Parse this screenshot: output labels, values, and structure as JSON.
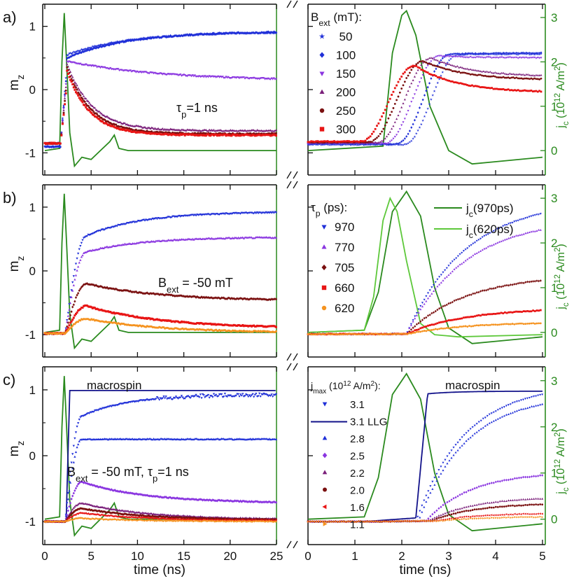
{
  "colors": {
    "axis": "#111111",
    "current": "#2a8a1e",
    "current_light": "#5dc83a",
    "blue": "#1f2fd8",
    "violet": "#8a35e0",
    "purple": "#7a1f7a",
    "darkred": "#7a1010",
    "red": "#e81515",
    "orange": "#f59320",
    "macrospin": "#12128a"
  },
  "chart_data": [
    {
      "panel": "a)",
      "type": "line",
      "ylabel": "m_z",
      "y2label": "j_c (10^12 A/m^2)",
      "ylim": [
        -1.35,
        1.35
      ],
      "y2lim": [
        -0.55,
        3.3
      ],
      "left": {
        "xlim": [
          0,
          25
        ],
        "xticks": [
          0,
          5,
          10,
          15,
          20,
          25
        ]
      },
      "right": {
        "xlim": [
          0,
          5
        ],
        "xticks": [
          0,
          1,
          2,
          3,
          4,
          5
        ]
      },
      "legend_title": "B_ext (mT):",
      "annotation": "τp=1 ns",
      "current": {
        "name": "j_c",
        "x": [
          0,
          1.6,
          1.8,
          2.0,
          2.1,
          2.3,
          2.6,
          3.0,
          3.5,
          4.0,
          5.0
        ],
        "y": [
          0,
          0.1,
          2.2,
          3.05,
          3.15,
          2.6,
          1.0,
          0.0,
          -0.3,
          -0.25,
          -0.15
        ]
      },
      "series": [
        {
          "name": "50",
          "color": "blue",
          "marker": "star",
          "end": 0.91,
          "t0": 2.9,
          "tau": 0.35,
          "peak": 0.55,
          "tpeak": 3.4
        },
        {
          "name": "100",
          "color": "blue",
          "marker": "diamond",
          "end": 0.92,
          "t0": 2.75,
          "tau": 0.3,
          "peak": 0.56,
          "tpeak": 3.3
        },
        {
          "name": "150",
          "color": "violet",
          "marker": "tri-down",
          "end": 0.14,
          "t0": 2.5,
          "tau": 0.25,
          "peak": 0.52,
          "tpeak": 3.0
        },
        {
          "name": "200",
          "color": "purple",
          "marker": "tri-up",
          "end": -0.65,
          "t0": 2.35,
          "tau": 0.22,
          "peak": 0.45,
          "tpeak": 2.7
        },
        {
          "name": "250",
          "color": "darkred",
          "marker": "circle",
          "end": -0.7,
          "t0": 2.2,
          "tau": 0.2,
          "peak": 0.38,
          "tpeak": 2.5
        },
        {
          "name": "300",
          "color": "red",
          "marker": "square",
          "end": -0.72,
          "t0": 2.05,
          "tau": 0.18,
          "peak": 0.3,
          "tpeak": 2.4
        }
      ]
    },
    {
      "panel": "b)",
      "type": "line",
      "ylabel": "m_z",
      "y2label": "j_c (10^12 A/m^2)",
      "ylim": [
        -1.35,
        1.35
      ],
      "y2lim": [
        -0.55,
        3.3
      ],
      "left": {
        "xlim": [
          0,
          25
        ],
        "xticks": [
          0,
          5,
          10,
          15,
          20,
          25
        ]
      },
      "right": {
        "xlim": [
          0,
          5
        ],
        "xticks": [
          0,
          1,
          2,
          3,
          4,
          5
        ]
      },
      "legend_title": "τp (ps):",
      "annotation": "Bext = -50 mT",
      "currents": [
        {
          "name": "jc(970ps)",
          "color": "current",
          "x": [
            0,
            1.2,
            1.5,
            1.8,
            2.1,
            2.4,
            2.7,
            3.0,
            3.5,
            4.0,
            5.0
          ],
          "y": [
            0,
            0.05,
            0.9,
            2.7,
            3.15,
            2.6,
            1.0,
            0.1,
            -0.25,
            -0.2,
            -0.1
          ]
        },
        {
          "name": "jc(620ps)",
          "color": "current_light",
          "x": [
            0,
            1.2,
            1.4,
            1.6,
            1.75,
            1.9,
            2.1,
            2.4,
            2.7,
            3.2,
            5.0
          ],
          "y": [
            0,
            0.05,
            0.8,
            2.5,
            3.0,
            2.7,
            1.6,
            0.2,
            -0.05,
            -0.1,
            -0.05
          ]
        }
      ],
      "series": [
        {
          "name": "970",
          "color": "blue",
          "marker": "tri-down",
          "end": 0.93
        },
        {
          "name": "770",
          "color": "violet",
          "marker": "tri-up",
          "end": 0.53
        },
        {
          "name": "705",
          "color": "darkred",
          "marker": "diamond",
          "end": -0.47
        },
        {
          "name": "660",
          "color": "red",
          "marker": "square",
          "end": -0.9
        },
        {
          "name": "620",
          "color": "orange",
          "marker": "circle",
          "end": -0.97
        }
      ]
    },
    {
      "panel": "c)",
      "type": "line",
      "ylabel": "m_z",
      "y2label": "j_c (10^12 A/m^2)",
      "ylim": [
        -1.35,
        1.35
      ],
      "y2lim": [
        -0.55,
        3.3
      ],
      "left": {
        "xlim": [
          0,
          25
        ],
        "xticks": [
          0,
          5,
          10,
          15,
          20,
          25
        ],
        "xlabel": "time (ns)"
      },
      "right": {
        "xlim": [
          0,
          5
        ],
        "xticks": [
          0,
          1,
          2,
          3,
          4,
          5
        ],
        "xlabel": "time (ns)"
      },
      "legend_title": "jmax (10^12 A/m^2):",
      "annotation": "Bext = -50 mT, τp=1 ns",
      "macrospin_label": "macrospin",
      "series": [
        {
          "name": "3.1",
          "color": "blue",
          "marker": "tri-down",
          "end": 0.93
        },
        {
          "name": "3.1 LLG",
          "color": "macrospin",
          "marker": "line",
          "end": 1.0
        },
        {
          "name": "2.8",
          "color": "blue",
          "marker": "tri-up",
          "end": 0.25
        },
        {
          "name": "2.5",
          "color": "violet",
          "marker": "diamond",
          "end": -0.72
        },
        {
          "name": "2.2",
          "color": "purple",
          "marker": "tri-up",
          "end": -0.97
        },
        {
          "name": "2.0",
          "color": "darkred",
          "marker": "circle",
          "end": -0.98
        },
        {
          "name": "1.6",
          "color": "red",
          "marker": "tri-left",
          "end": -0.99
        },
        {
          "name": "1.1",
          "color": "orange",
          "marker": "tri-right",
          "end": -1.0
        }
      ]
    }
  ],
  "labels": {
    "a": "a)",
    "b": "b)",
    "c": "c)",
    "mz": "m",
    "mz_sub": "z",
    "jc": "j",
    "jc_sub": "c",
    "jc_units": " (10",
    "jc_exp": "12",
    "jc_units2": " A/m",
    "jc_exp2": "2",
    "jc_close": ")",
    "xlabel": "time (ns)",
    "a_legend_title_B": "B",
    "a_legend_title_sub": "ext",
    "a_legend_title_rest": " (mT):",
    "a_legend": [
      "50",
      "100",
      "150",
      "200",
      "250",
      "300"
    ],
    "a_annot_tau": "τ",
    "a_annot_sub": "p",
    "a_annot_rest": "=1 ns",
    "b_legend_title_tau": "τ",
    "b_legend_title_sub": "p",
    "b_legend_title_rest": " (ps):",
    "b_legend": [
      "970",
      "770",
      "705",
      "660",
      "620"
    ],
    "b_curr1": "j",
    "b_curr1_sub": "c",
    "b_curr1_rest": "(970ps)",
    "b_curr2": "j",
    "b_curr2_sub": "c",
    "b_curr2_rest": "(620ps)",
    "b_annot_B": "B",
    "b_annot_sub": "ext",
    "b_annot_rest": " = -50 mT",
    "c_legend_title_j": "j",
    "c_legend_title_sub": "max",
    "c_legend_title_rest": " (10",
    "c_legend_title_exp": "12",
    "c_legend_title_rest2": " A/m",
    "c_legend_title_exp2": "2",
    "c_legend_title_close": "):",
    "c_legend": [
      "3.1",
      "3.1 LLG",
      "2.8",
      "2.5",
      "2.2",
      "2.0",
      "1.6",
      "1.1"
    ],
    "c_annot_B": "B",
    "c_annot_sub": "ext",
    "c_annot_rest": " = -50 mT, ",
    "c_annot_tau": "τ",
    "c_annot_tsub": "p",
    "c_annot_rest2": "=1 ns",
    "macrospin": "macrospin"
  }
}
